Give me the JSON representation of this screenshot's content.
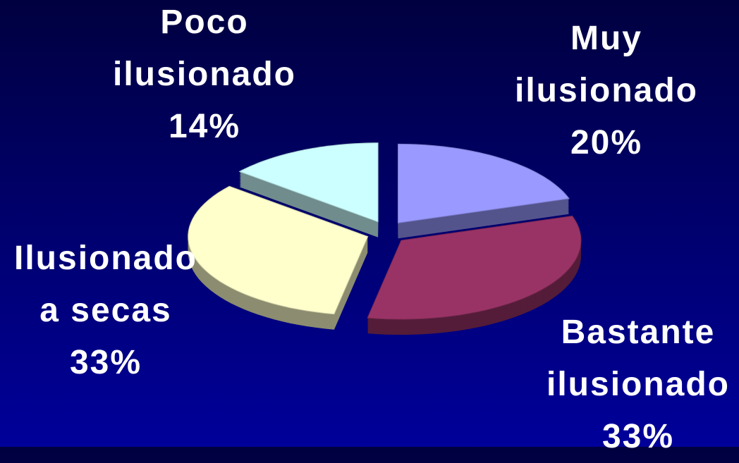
{
  "chart_data": {
    "type": "pie",
    "categories": [
      "Muy ilusionado",
      "Bastante ilusionado",
      "Ilusionado a secas",
      "Poco ilusionado"
    ],
    "values": [
      20,
      33,
      33,
      14
    ],
    "value_labels": [
      "20%",
      "33%",
      "33%",
      "14%"
    ],
    "colors": [
      "#9999ff",
      "#993366",
      "#ffffcc",
      "#ccffff"
    ]
  }
}
